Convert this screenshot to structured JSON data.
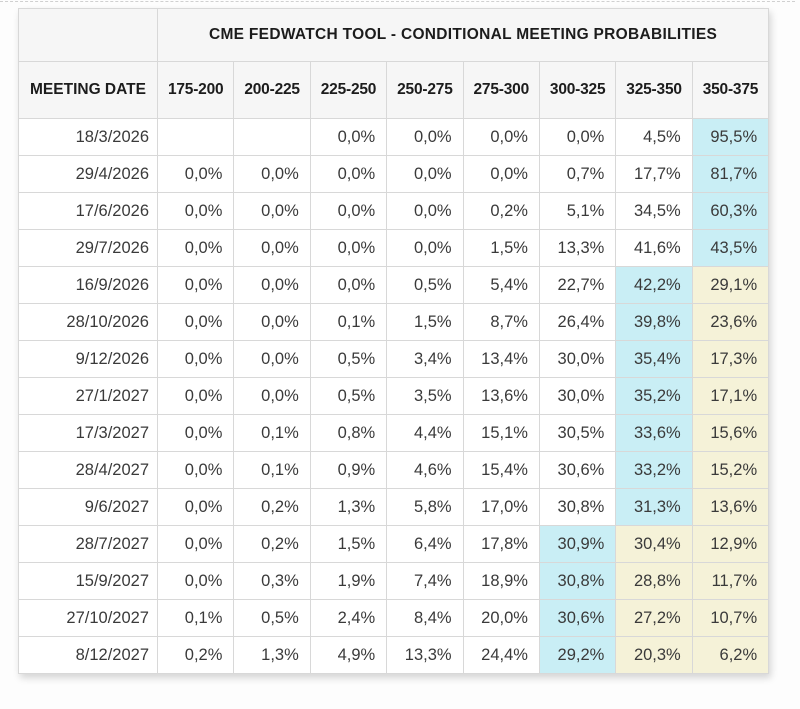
{
  "colors": {
    "highlight_cyan": "#c9eef5",
    "highlight_yellow": "#f5f2d8",
    "header_background": "#f6f6f6",
    "grid_border": "#d8d8d8"
  },
  "table": {
    "title": "CME FEDWATCH TOOL - CONDITIONAL MEETING PROBABILITIES",
    "date_column_header": "MEETING DATE",
    "rate_columns": [
      "175-200",
      "200-225",
      "225-250",
      "250-275",
      "275-300",
      "300-325",
      "325-350",
      "350-375"
    ],
    "rows": [
      {
        "date": "18/3/2026",
        "values": [
          "",
          "",
          "0,0%",
          "0,0%",
          "0,0%",
          "0,0%",
          "4,5%",
          "95,5%"
        ],
        "highlights": [
          "",
          "",
          "",
          "",
          "",
          "",
          "",
          "cyan"
        ]
      },
      {
        "date": "29/4/2026",
        "values": [
          "0,0%",
          "0,0%",
          "0,0%",
          "0,0%",
          "0,0%",
          "0,7%",
          "17,7%",
          "81,7%"
        ],
        "highlights": [
          "",
          "",
          "",
          "",
          "",
          "",
          "",
          "cyan"
        ]
      },
      {
        "date": "17/6/2026",
        "values": [
          "0,0%",
          "0,0%",
          "0,0%",
          "0,0%",
          "0,2%",
          "5,1%",
          "34,5%",
          "60,3%"
        ],
        "highlights": [
          "",
          "",
          "",
          "",
          "",
          "",
          "",
          "cyan"
        ]
      },
      {
        "date": "29/7/2026",
        "values": [
          "0,0%",
          "0,0%",
          "0,0%",
          "0,0%",
          "1,5%",
          "13,3%",
          "41,6%",
          "43,5%"
        ],
        "highlights": [
          "",
          "",
          "",
          "",
          "",
          "",
          "",
          "cyan"
        ]
      },
      {
        "date": "16/9/2026",
        "values": [
          "0,0%",
          "0,0%",
          "0,0%",
          "0,5%",
          "5,4%",
          "22,7%",
          "42,2%",
          "29,1%"
        ],
        "highlights": [
          "",
          "",
          "",
          "",
          "",
          "",
          "cyan",
          "yellow"
        ]
      },
      {
        "date": "28/10/2026",
        "values": [
          "0,0%",
          "0,0%",
          "0,1%",
          "1,5%",
          "8,7%",
          "26,4%",
          "39,8%",
          "23,6%"
        ],
        "highlights": [
          "",
          "",
          "",
          "",
          "",
          "",
          "cyan",
          "yellow"
        ]
      },
      {
        "date": "9/12/2026",
        "values": [
          "0,0%",
          "0,0%",
          "0,5%",
          "3,4%",
          "13,4%",
          "30,0%",
          "35,4%",
          "17,3%"
        ],
        "highlights": [
          "",
          "",
          "",
          "",
          "",
          "",
          "cyan",
          "yellow"
        ]
      },
      {
        "date": "27/1/2027",
        "values": [
          "0,0%",
          "0,0%",
          "0,5%",
          "3,5%",
          "13,6%",
          "30,0%",
          "35,2%",
          "17,1%"
        ],
        "highlights": [
          "",
          "",
          "",
          "",
          "",
          "",
          "cyan",
          "yellow"
        ]
      },
      {
        "date": "17/3/2027",
        "values": [
          "0,0%",
          "0,1%",
          "0,8%",
          "4,4%",
          "15,1%",
          "30,5%",
          "33,6%",
          "15,6%"
        ],
        "highlights": [
          "",
          "",
          "",
          "",
          "",
          "",
          "cyan",
          "yellow"
        ]
      },
      {
        "date": "28/4/2027",
        "values": [
          "0,0%",
          "0,1%",
          "0,9%",
          "4,6%",
          "15,4%",
          "30,6%",
          "33,2%",
          "15,2%"
        ],
        "highlights": [
          "",
          "",
          "",
          "",
          "",
          "",
          "cyan",
          "yellow"
        ]
      },
      {
        "date": "9/6/2027",
        "values": [
          "0,0%",
          "0,2%",
          "1,3%",
          "5,8%",
          "17,0%",
          "30,8%",
          "31,3%",
          "13,6%"
        ],
        "highlights": [
          "",
          "",
          "",
          "",
          "",
          "",
          "cyan",
          "yellow"
        ]
      },
      {
        "date": "28/7/2027",
        "values": [
          "0,0%",
          "0,2%",
          "1,5%",
          "6,4%",
          "17,8%",
          "30,9%",
          "30,4%",
          "12,9%"
        ],
        "highlights": [
          "",
          "",
          "",
          "",
          "",
          "cyan",
          "yellow",
          "yellow"
        ]
      },
      {
        "date": "15/9/2027",
        "values": [
          "0,0%",
          "0,3%",
          "1,9%",
          "7,4%",
          "18,9%",
          "30,8%",
          "28,8%",
          "11,7%"
        ],
        "highlights": [
          "",
          "",
          "",
          "",
          "",
          "cyan",
          "yellow",
          "yellow"
        ]
      },
      {
        "date": "27/10/2027",
        "values": [
          "0,1%",
          "0,5%",
          "2,4%",
          "8,4%",
          "20,0%",
          "30,6%",
          "27,2%",
          "10,7%"
        ],
        "highlights": [
          "",
          "",
          "",
          "",
          "",
          "cyan",
          "yellow",
          "yellow"
        ]
      },
      {
        "date": "8/12/2027",
        "values": [
          "0,2%",
          "1,3%",
          "4,9%",
          "13,3%",
          "24,4%",
          "29,2%",
          "20,3%",
          "6,2%"
        ],
        "highlights": [
          "",
          "",
          "",
          "",
          "",
          "cyan",
          "yellow",
          "yellow"
        ]
      }
    ]
  },
  "chart_data": {
    "type": "table",
    "title": "CME FEDWATCH TOOL - CONDITIONAL MEETING PROBABILITIES",
    "row_label_header": "MEETING DATE",
    "columns": [
      "175-200",
      "200-225",
      "225-250",
      "250-275",
      "275-300",
      "300-325",
      "325-350",
      "350-375"
    ],
    "unit": "percent",
    "decimal_separator_displayed": ",",
    "rows": [
      {
        "meeting_date": "18/3/2026",
        "probabilities": [
          null,
          null,
          0.0,
          0.0,
          0.0,
          0.0,
          4.5,
          95.5
        ]
      },
      {
        "meeting_date": "29/4/2026",
        "probabilities": [
          0.0,
          0.0,
          0.0,
          0.0,
          0.0,
          0.7,
          17.7,
          81.7
        ]
      },
      {
        "meeting_date": "17/6/2026",
        "probabilities": [
          0.0,
          0.0,
          0.0,
          0.0,
          0.2,
          5.1,
          34.5,
          60.3
        ]
      },
      {
        "meeting_date": "29/7/2026",
        "probabilities": [
          0.0,
          0.0,
          0.0,
          0.0,
          1.5,
          13.3,
          41.6,
          43.5
        ]
      },
      {
        "meeting_date": "16/9/2026",
        "probabilities": [
          0.0,
          0.0,
          0.0,
          0.5,
          5.4,
          22.7,
          42.2,
          29.1
        ]
      },
      {
        "meeting_date": "28/10/2026",
        "probabilities": [
          0.0,
          0.0,
          0.1,
          1.5,
          8.7,
          26.4,
          39.8,
          23.6
        ]
      },
      {
        "meeting_date": "9/12/2026",
        "probabilities": [
          0.0,
          0.0,
          0.5,
          3.4,
          13.4,
          30.0,
          35.4,
          17.3
        ]
      },
      {
        "meeting_date": "27/1/2027",
        "probabilities": [
          0.0,
          0.0,
          0.5,
          3.5,
          13.6,
          30.0,
          35.2,
          17.1
        ]
      },
      {
        "meeting_date": "17/3/2027",
        "probabilities": [
          0.0,
          0.1,
          0.8,
          4.4,
          15.1,
          30.5,
          33.6,
          15.6
        ]
      },
      {
        "meeting_date": "28/4/2027",
        "probabilities": [
          0.0,
          0.1,
          0.9,
          4.6,
          15.4,
          30.6,
          33.2,
          15.2
        ]
      },
      {
        "meeting_date": "9/6/2027",
        "probabilities": [
          0.0,
          0.2,
          1.3,
          5.8,
          17.0,
          30.8,
          31.3,
          13.6
        ]
      },
      {
        "meeting_date": "28/7/2027",
        "probabilities": [
          0.0,
          0.2,
          1.5,
          6.4,
          17.8,
          30.9,
          30.4,
          12.9
        ]
      },
      {
        "meeting_date": "15/9/2027",
        "probabilities": [
          0.0,
          0.3,
          1.9,
          7.4,
          18.9,
          30.8,
          28.8,
          11.7
        ]
      },
      {
        "meeting_date": "27/10/2027",
        "probabilities": [
          0.1,
          0.5,
          2.4,
          8.4,
          20.0,
          30.6,
          27.2,
          10.7
        ]
      },
      {
        "meeting_date": "8/12/2027",
        "probabilities": [
          0.2,
          1.3,
          4.9,
          13.3,
          24.4,
          29.2,
          20.3,
          6.2
        ]
      }
    ],
    "highlight_legend": {
      "cyan": "highest probability bucket in row",
      "yellow": "buckets at/right of the modal bucket (secondary highlight)"
    }
  }
}
